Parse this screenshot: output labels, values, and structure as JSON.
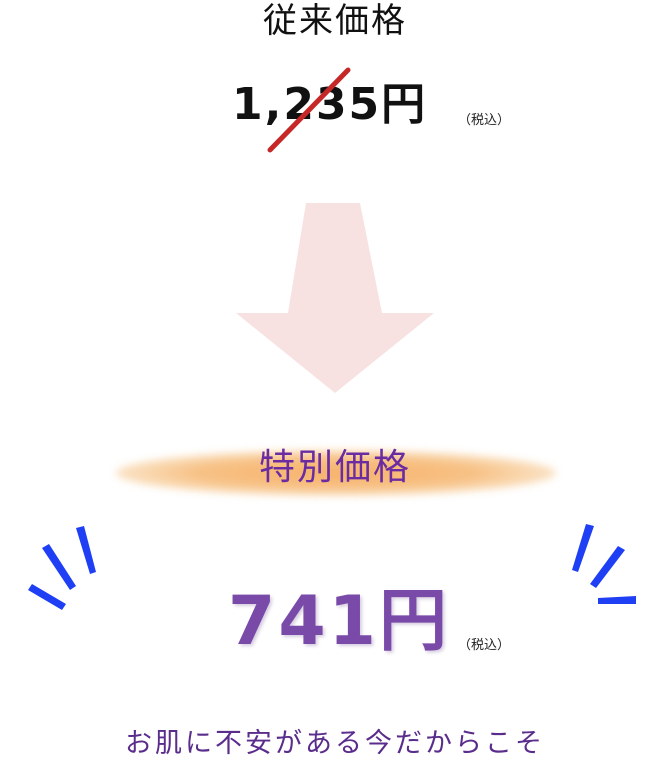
{
  "regular": {
    "heading": "従来価格",
    "price": "1,235円",
    "tax_note": "（税込）"
  },
  "special": {
    "heading": "特別価格",
    "price": "741円",
    "tax_note": "（税込）"
  },
  "tagline": "お肌に不安がある今だからこそ",
  "colors": {
    "strike": "#c62828",
    "arrow": "#f8e1e1",
    "glow": "#f6b26b",
    "special_heading": "#6a2ca0",
    "special_price": "#7a4aa9",
    "burst": "#1f3ff5",
    "tagline": "#5a2d8c"
  },
  "icons": {
    "arrow": "down-arrow-icon",
    "strike": "strikethrough-line",
    "bursts": "emphasis-burst-icon"
  }
}
